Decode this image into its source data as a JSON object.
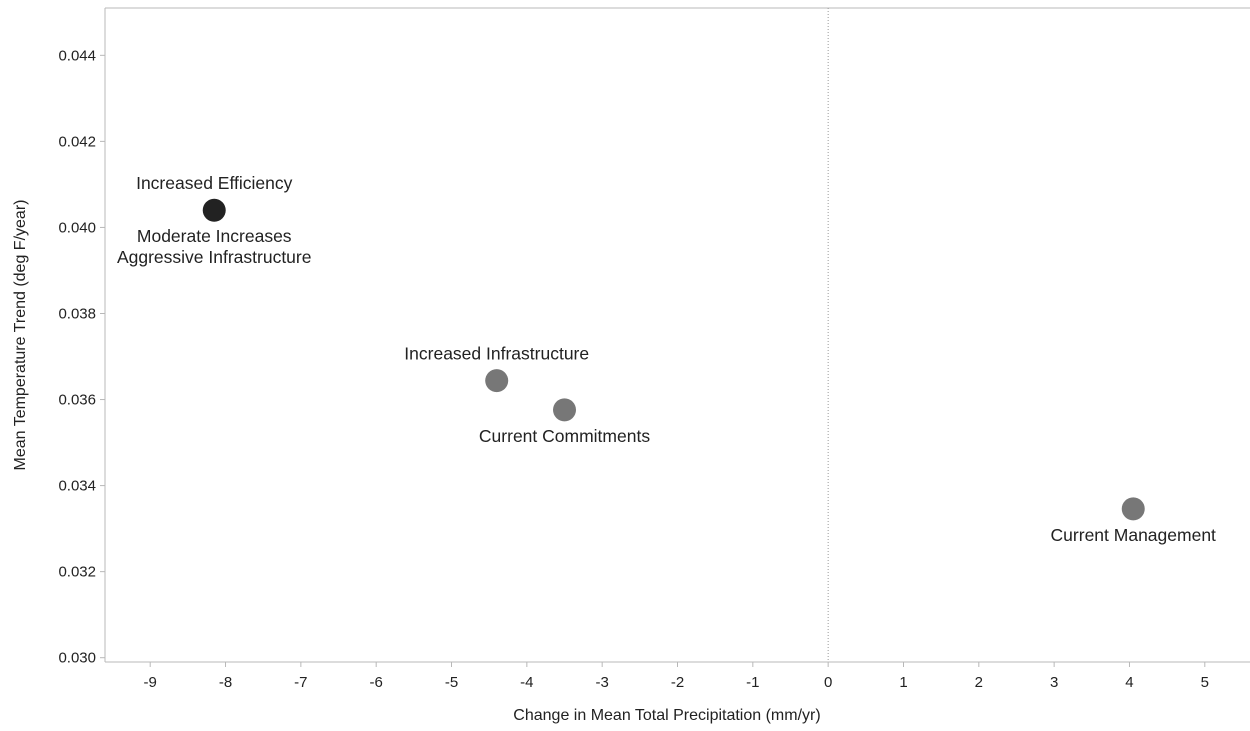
{
  "chart_data": {
    "type": "scatter",
    "xlabel": "Change in Mean Total Precipitation (mm/yr)",
    "ylabel": "Mean Temperature Trend (deg F/year)",
    "xlim": [
      -9.6,
      5.6
    ],
    "ylim": [
      0.0299,
      0.0451
    ],
    "x_ticks": [
      -9,
      -8,
      -7,
      -6,
      -5,
      -4,
      -3,
      -2,
      -1,
      0,
      1,
      2,
      3,
      4,
      5
    ],
    "y_ticks": [
      0.03,
      0.032,
      0.034,
      0.036,
      0.038,
      0.04,
      0.042,
      0.044
    ],
    "y_tick_labels": [
      "0.030",
      "0.032",
      "0.034",
      "0.036",
      "0.038",
      "0.040",
      "0.042",
      "0.044"
    ],
    "reference_line_x": 0,
    "grid": false,
    "points": [
      {
        "x": -8.15,
        "y": 0.0404,
        "labels_above": [
          "Increased Efficiency"
        ],
        "labels_below": [
          "Moderate Increases",
          "Aggressive Infrastructure"
        ],
        "color": "#222222"
      },
      {
        "x": -4.4,
        "y": 0.03644,
        "labels_above": [
          "Increased Infrastructure"
        ],
        "labels_below": [],
        "color": "#777777"
      },
      {
        "x": -3.5,
        "y": 0.03576,
        "labels_above": [],
        "labels_below": [
          "Current Commitments"
        ],
        "color": "#777777"
      },
      {
        "x": 4.05,
        "y": 0.03346,
        "labels_above": [],
        "labels_below": [
          "Current Management"
        ],
        "color": "#777777"
      }
    ]
  }
}
